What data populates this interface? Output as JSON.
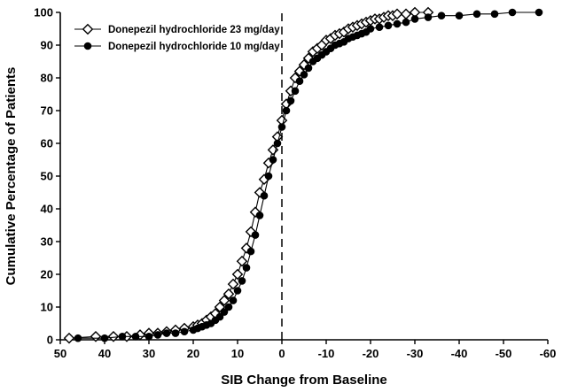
{
  "figure": {
    "background": "#ffffff",
    "line_color": "#000000"
  },
  "chart_data": {
    "type": "line",
    "title": "",
    "xlabel": "SIB Change from Baseline",
    "ylabel": "Cumulative Percentage of Patients",
    "xlim": [
      50,
      -60
    ],
    "ylim": [
      0,
      100
    ],
    "x_axis_reversed": true,
    "grid": false,
    "legend_position": "top-left-inside",
    "x_ticks": [
      50,
      40,
      30,
      20,
      10,
      0,
      -10,
      -20,
      -30,
      -40,
      -50,
      -60
    ],
    "y_ticks": [
      0,
      10,
      20,
      30,
      40,
      50,
      60,
      70,
      80,
      90,
      100
    ],
    "reference_line": {
      "x": 0,
      "style": "dashed",
      "color": "#000000"
    },
    "series": [
      {
        "name": "Donepezil hydrochloride 23 mg/day",
        "marker": "open-diamond",
        "color": "#000000",
        "x": [
          48,
          42,
          38,
          35,
          32,
          30,
          28,
          26,
          24,
          22,
          20,
          19,
          18,
          17,
          16,
          15,
          14,
          13,
          12,
          11,
          10,
          9,
          8,
          7,
          6,
          5,
          4,
          3,
          2,
          1,
          0,
          -1,
          -2,
          -3,
          -4,
          -5,
          -6,
          -7,
          -8,
          -9,
          -10,
          -11,
          -12,
          -13,
          -14,
          -15,
          -16,
          -17,
          -18,
          -19,
          -20,
          -21,
          -22,
          -23,
          -24,
          -25,
          -26,
          -28,
          -30,
          -33
        ],
        "y": [
          0.5,
          1,
          1,
          1,
          1.5,
          2,
          2,
          2.5,
          3,
          3.5,
          4,
          4.5,
          5,
          6,
          7,
          8,
          10,
          12,
          14,
          17,
          20,
          24,
          28,
          33,
          39,
          45,
          49,
          54,
          58,
          62,
          67,
          72,
          76,
          80,
          82,
          84,
          86,
          88,
          89,
          90,
          91.5,
          92,
          93,
          93.5,
          94,
          95,
          95.5,
          96,
          96.5,
          97,
          97.5,
          98,
          98,
          98.5,
          99,
          99,
          99.5,
          99.5,
          100,
          100
        ]
      },
      {
        "name": "Donepezil hydrochloride 10 mg/day",
        "marker": "filled-circle",
        "color": "#000000",
        "x": [
          46,
          40,
          36,
          33,
          30,
          28,
          26,
          24,
          22,
          20,
          19,
          18,
          17,
          16,
          15,
          14,
          13,
          12,
          11,
          10,
          9,
          8,
          7,
          6,
          5,
          4,
          3,
          2,
          1,
          0,
          -1,
          -2,
          -3,
          -4,
          -5,
          -6,
          -7,
          -8,
          -9,
          -10,
          -11,
          -12,
          -13,
          -14,
          -15,
          -16,
          -17,
          -18,
          -19,
          -20,
          -22,
          -24,
          -26,
          -28,
          -30,
          -33,
          -36,
          -40,
          -44,
          -48,
          -52,
          -58
        ],
        "y": [
          0.5,
          0.5,
          1,
          1,
          1,
          1.5,
          2,
          2,
          2.5,
          3,
          3.5,
          4,
          4.5,
          5,
          6,
          7,
          8.5,
          10,
          12,
          15,
          18,
          22,
          27,
          32,
          38,
          44,
          50,
          55,
          60,
          65,
          70,
          73,
          76,
          79,
          81,
          83,
          85,
          86,
          87,
          88,
          89,
          90,
          90.5,
          91,
          92,
          92.5,
          93,
          93.5,
          94,
          95,
          95.5,
          96,
          96.5,
          97,
          98,
          98.5,
          99,
          99,
          99.5,
          99.5,
          100,
          100
        ]
      }
    ]
  }
}
